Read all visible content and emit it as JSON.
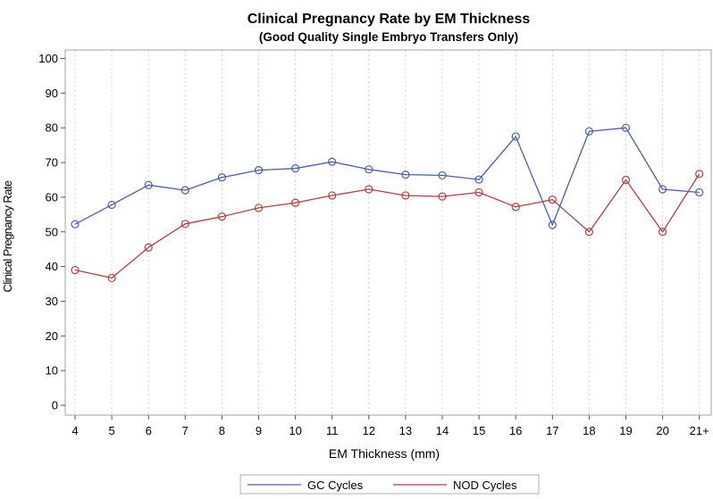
{
  "chart_data": {
    "type": "line",
    "title": "Clinical Pregnancy Rate by EM Thickness",
    "subtitle": "(Good Quality Single Embryo Transfers Only)",
    "xlabel": "EM Thickness (mm)",
    "ylabel": "Clinical Pregnancy Rate",
    "categories": [
      "4",
      "5",
      "6",
      "7",
      "8",
      "9",
      "10",
      "11",
      "12",
      "13",
      "14",
      "15",
      "16",
      "17",
      "18",
      "19",
      "20",
      "21+"
    ],
    "ylim": [
      0,
      100
    ],
    "yticks": [
      0,
      10,
      20,
      30,
      40,
      50,
      60,
      70,
      80,
      90,
      100
    ],
    "grid": "vertical dotted",
    "legend_position": "bottom",
    "series": [
      {
        "name": "GC Cycles",
        "color": "#4a5fa8",
        "values": [
          52.2,
          57.8,
          63.5,
          62.0,
          65.7,
          67.8,
          68.3,
          70.2,
          68.0,
          66.5,
          66.3,
          65.1,
          77.5,
          52.0,
          79.0,
          80.0,
          62.3,
          61.4
        ]
      },
      {
        "name": "NOD Cycles",
        "color": "#b0413e",
        "values": [
          39.0,
          36.7,
          45.5,
          52.3,
          54.4,
          56.9,
          58.4,
          60.5,
          62.3,
          60.5,
          60.2,
          61.4,
          57.2,
          59.3,
          50.0,
          65.0,
          50.0,
          66.7
        ]
      }
    ]
  }
}
